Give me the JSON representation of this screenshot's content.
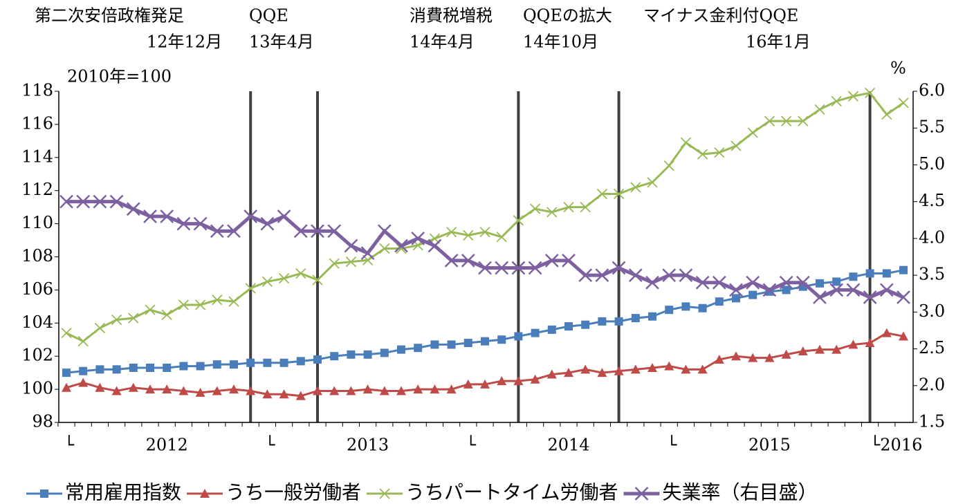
{
  "chart_data": {
    "type": "line",
    "annotations": [
      {
        "label": "第二次安倍政権発足",
        "date": "12年12月"
      },
      {
        "label": "QQE",
        "date": "13年4月"
      },
      {
        "label": "消費税増税",
        "date": "14年4月"
      },
      {
        "label": "QQEの拡大",
        "date": "14年10月"
      },
      {
        "label": "マイナス金利付QQE",
        "date": "16年1月"
      }
    ],
    "ylabel": "2010年=100",
    "y2label": "%",
    "categories": [
      "└",
      null,
      null,
      null,
      null,
      null,
      "2012",
      null,
      null,
      null,
      null,
      null,
      "└",
      null,
      null,
      null,
      null,
      null,
      "2013",
      null,
      null,
      null,
      null,
      null,
      "└",
      null,
      null,
      null,
      null,
      null,
      "2014",
      null,
      null,
      null,
      null,
      null,
      "└",
      null,
      null,
      null,
      null,
      null,
      "2015",
      null,
      null,
      null,
      null,
      null,
      "└2016",
      null,
      null
    ],
    "ylim": [
      98,
      118
    ],
    "yticks": [
      98,
      100,
      102,
      104,
      106,
      108,
      110,
      112,
      114,
      116,
      118
    ],
    "y2lim": [
      1.5,
      6.0
    ],
    "y2ticks": [
      {
        "value": 1.5,
        "label": "1.5"
      },
      {
        "value": 2,
        "label": "2.0"
      },
      {
        "value": 2.5,
        "label": "2.5"
      },
      {
        "value": 3,
        "label": "3.0"
      },
      {
        "value": 3.5,
        "label": "3.5"
      },
      {
        "value": 4,
        "label": "4.0"
      },
      {
        "value": 4.5,
        "label": "4.5"
      },
      {
        "value": 5,
        "label": "5.0"
      },
      {
        "value": 5.5,
        "label": "5.5"
      },
      {
        "value": 6,
        "label": "6.0"
      }
    ],
    "grid": false,
    "legend": "bottom",
    "series": [
      {
        "name": "常用雇用指数",
        "color": "#4a7ebb",
        "marker": "square",
        "values": [
          101.0,
          101.1,
          101.2,
          101.2,
          101.3,
          101.3,
          101.3,
          101.4,
          101.4,
          101.5,
          101.5,
          101.6,
          101.6,
          101.6,
          101.7,
          101.8,
          102.0,
          102.1,
          102.1,
          102.2,
          102.4,
          102.5,
          102.7,
          102.7,
          102.8,
          102.9,
          103.0,
          103.2,
          103.4,
          103.6,
          103.8,
          103.9,
          104.1,
          104.1,
          104.3,
          104.4,
          104.8,
          105.0,
          104.9,
          105.3,
          105.5,
          105.7,
          105.9,
          106.0,
          106.2,
          106.4,
          106.5,
          106.8,
          107.0,
          107.0,
          107.2
        ]
      },
      {
        "name": "うち一般労働者",
        "color": "#be4b48",
        "marker": "triangle",
        "values": [
          100.1,
          100.4,
          100.1,
          99.9,
          100.1,
          100.0,
          100.0,
          99.9,
          99.8,
          99.9,
          100.0,
          99.9,
          99.7,
          99.7,
          99.6,
          99.9,
          99.9,
          99.9,
          100.0,
          99.9,
          99.9,
          100.0,
          100.0,
          100.0,
          100.3,
          100.3,
          100.5,
          100.5,
          100.6,
          100.9,
          101.0,
          101.2,
          101.0,
          101.1,
          101.2,
          101.3,
          101.4,
          101.2,
          101.2,
          101.8,
          102.0,
          101.9,
          101.9,
          102.1,
          102.3,
          102.4,
          102.4,
          102.7,
          102.8,
          103.4,
          103.2
        ]
      },
      {
        "name": "うちパートタイム労働者",
        "color": "#98b954",
        "marker": "x",
        "values": [
          103.4,
          102.9,
          103.7,
          104.2,
          104.3,
          104.8,
          104.5,
          105.1,
          105.1,
          105.4,
          105.3,
          106.1,
          106.5,
          106.7,
          107.0,
          106.6,
          107.6,
          107.7,
          107.8,
          108.5,
          108.5,
          108.7,
          109.1,
          109.5,
          109.3,
          109.5,
          109.2,
          110.2,
          110.9,
          110.7,
          111.0,
          111.0,
          111.8,
          111.8,
          112.2,
          112.5,
          113.5,
          114.9,
          114.2,
          114.3,
          114.7,
          115.5,
          116.2,
          116.2,
          116.2,
          116.9,
          117.4,
          117.7,
          117.9,
          116.6,
          117.3
        ]
      },
      {
        "name": "失業率（右目盛）",
        "color": "#7d60a0",
        "marker": "x",
        "axis": "y2",
        "values": [
          4.5,
          4.5,
          4.5,
          4.5,
          4.4,
          4.3,
          4.3,
          4.2,
          4.2,
          4.1,
          4.1,
          4.3,
          4.2,
          4.3,
          4.1,
          4.1,
          4.1,
          3.9,
          3.8,
          4.1,
          3.9,
          4.0,
          3.9,
          3.7,
          3.7,
          3.6,
          3.6,
          3.6,
          3.6,
          3.7,
          3.7,
          3.5,
          3.5,
          3.6,
          3.5,
          3.4,
          3.5,
          3.5,
          3.4,
          3.4,
          3.3,
          3.4,
          3.3,
          3.4,
          3.4,
          3.2,
          3.3,
          3.3,
          3.2,
          3.3,
          3.2
        ]
      }
    ]
  }
}
